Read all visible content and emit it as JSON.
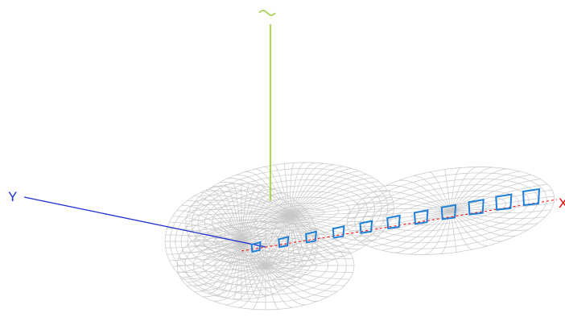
{
  "axes": {
    "x": {
      "label": "X",
      "color": "#ff0000"
    },
    "y": {
      "label": "Y",
      "color": "#1f2fd0"
    },
    "z": {
      "label": "Z",
      "color": "#9acd32"
    }
  },
  "colors": {
    "pattern_mesh": "#c8c8c8",
    "elements": "#1e7fd8",
    "background": "#ffffff"
  },
  "array": {
    "element_count": 11,
    "element_shape": "square-loop"
  }
}
